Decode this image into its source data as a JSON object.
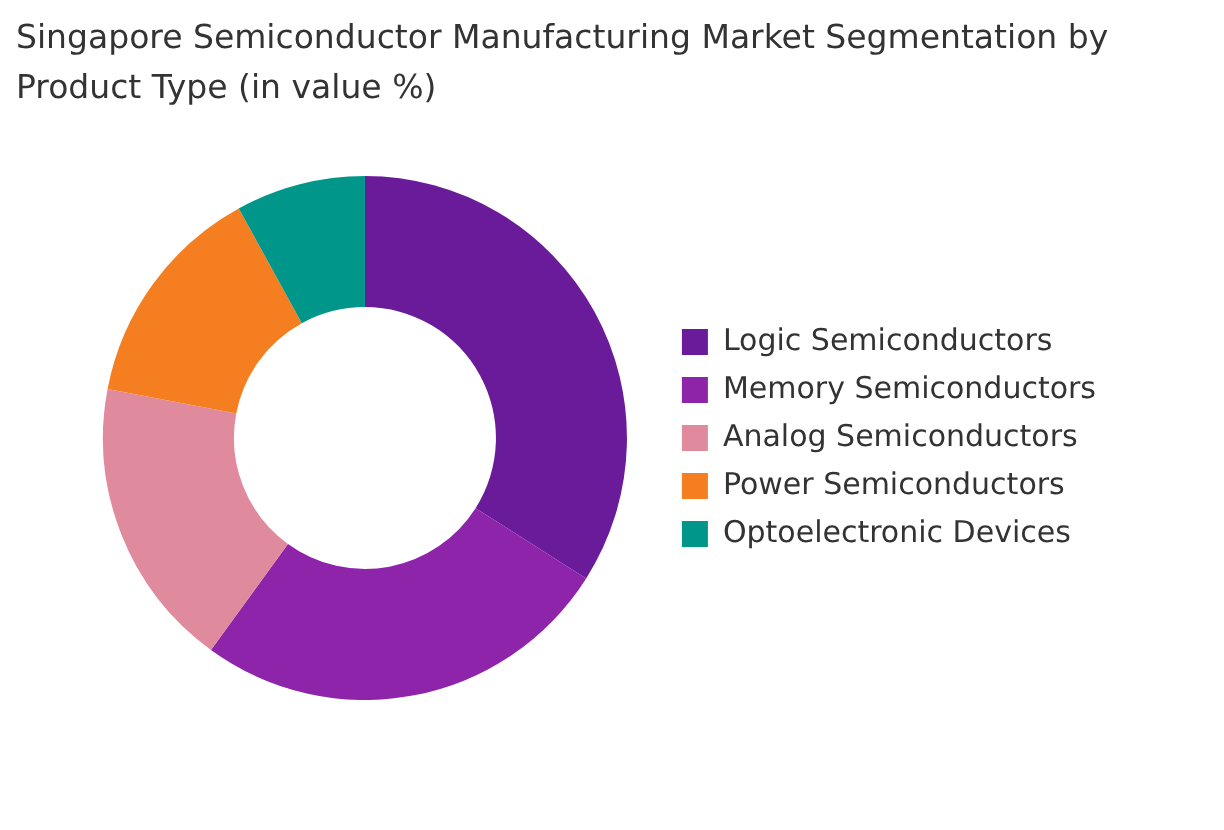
{
  "chart_data": {
    "type": "donut",
    "title": "Singapore Semiconductor Manufacturing Market Segmentation by Product Type (in value %)",
    "categories": [
      "Logic Semiconductors",
      "Memory Semiconductors",
      "Analog Semiconductors",
      "Power Semiconductors",
      "Optoelectronic Devices"
    ],
    "values": [
      34,
      26,
      18,
      14,
      8
    ],
    "colors": [
      "#6a1b9a",
      "#8e24aa",
      "#e08a9e",
      "#f57f20",
      "#00968a"
    ],
    "legend": "right"
  }
}
